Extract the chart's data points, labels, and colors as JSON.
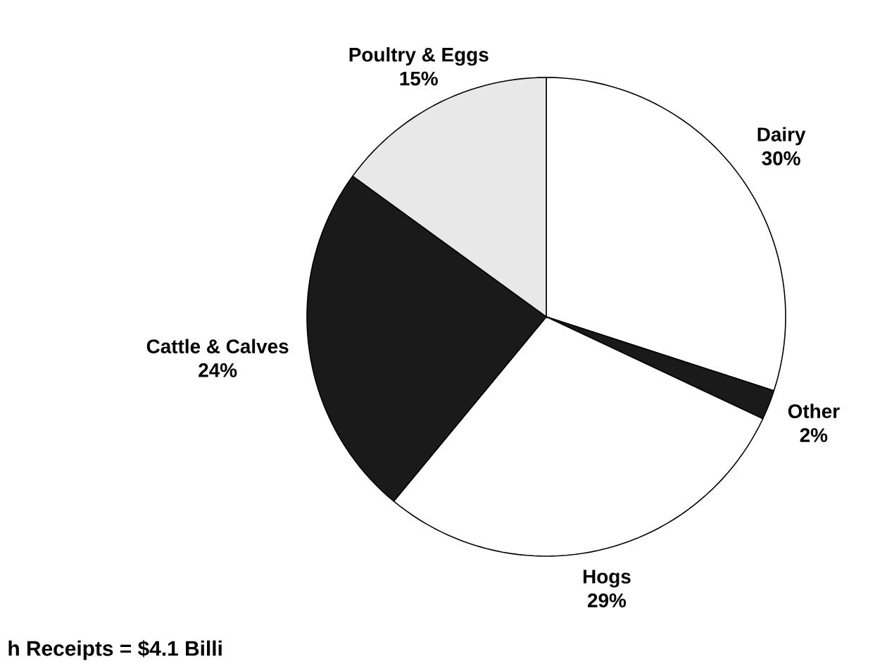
{
  "chart_data": {
    "type": "pie",
    "categories": [
      "Dairy",
      "Other",
      "Hogs",
      "Cattle & Calves",
      "Poultry & Eggs"
    ],
    "values": [
      30,
      2,
      29,
      24,
      15
    ],
    "colors": [
      "#ffffff",
      "#1a1a1a",
      "#ffffff",
      "#1a1a1a",
      "#e8e8e8"
    ],
    "value_labels": [
      "30%",
      "2%",
      "29%",
      "24%",
      "15%"
    ],
    "annotations": [
      "h Receipts = $4.1 Billi"
    ]
  }
}
